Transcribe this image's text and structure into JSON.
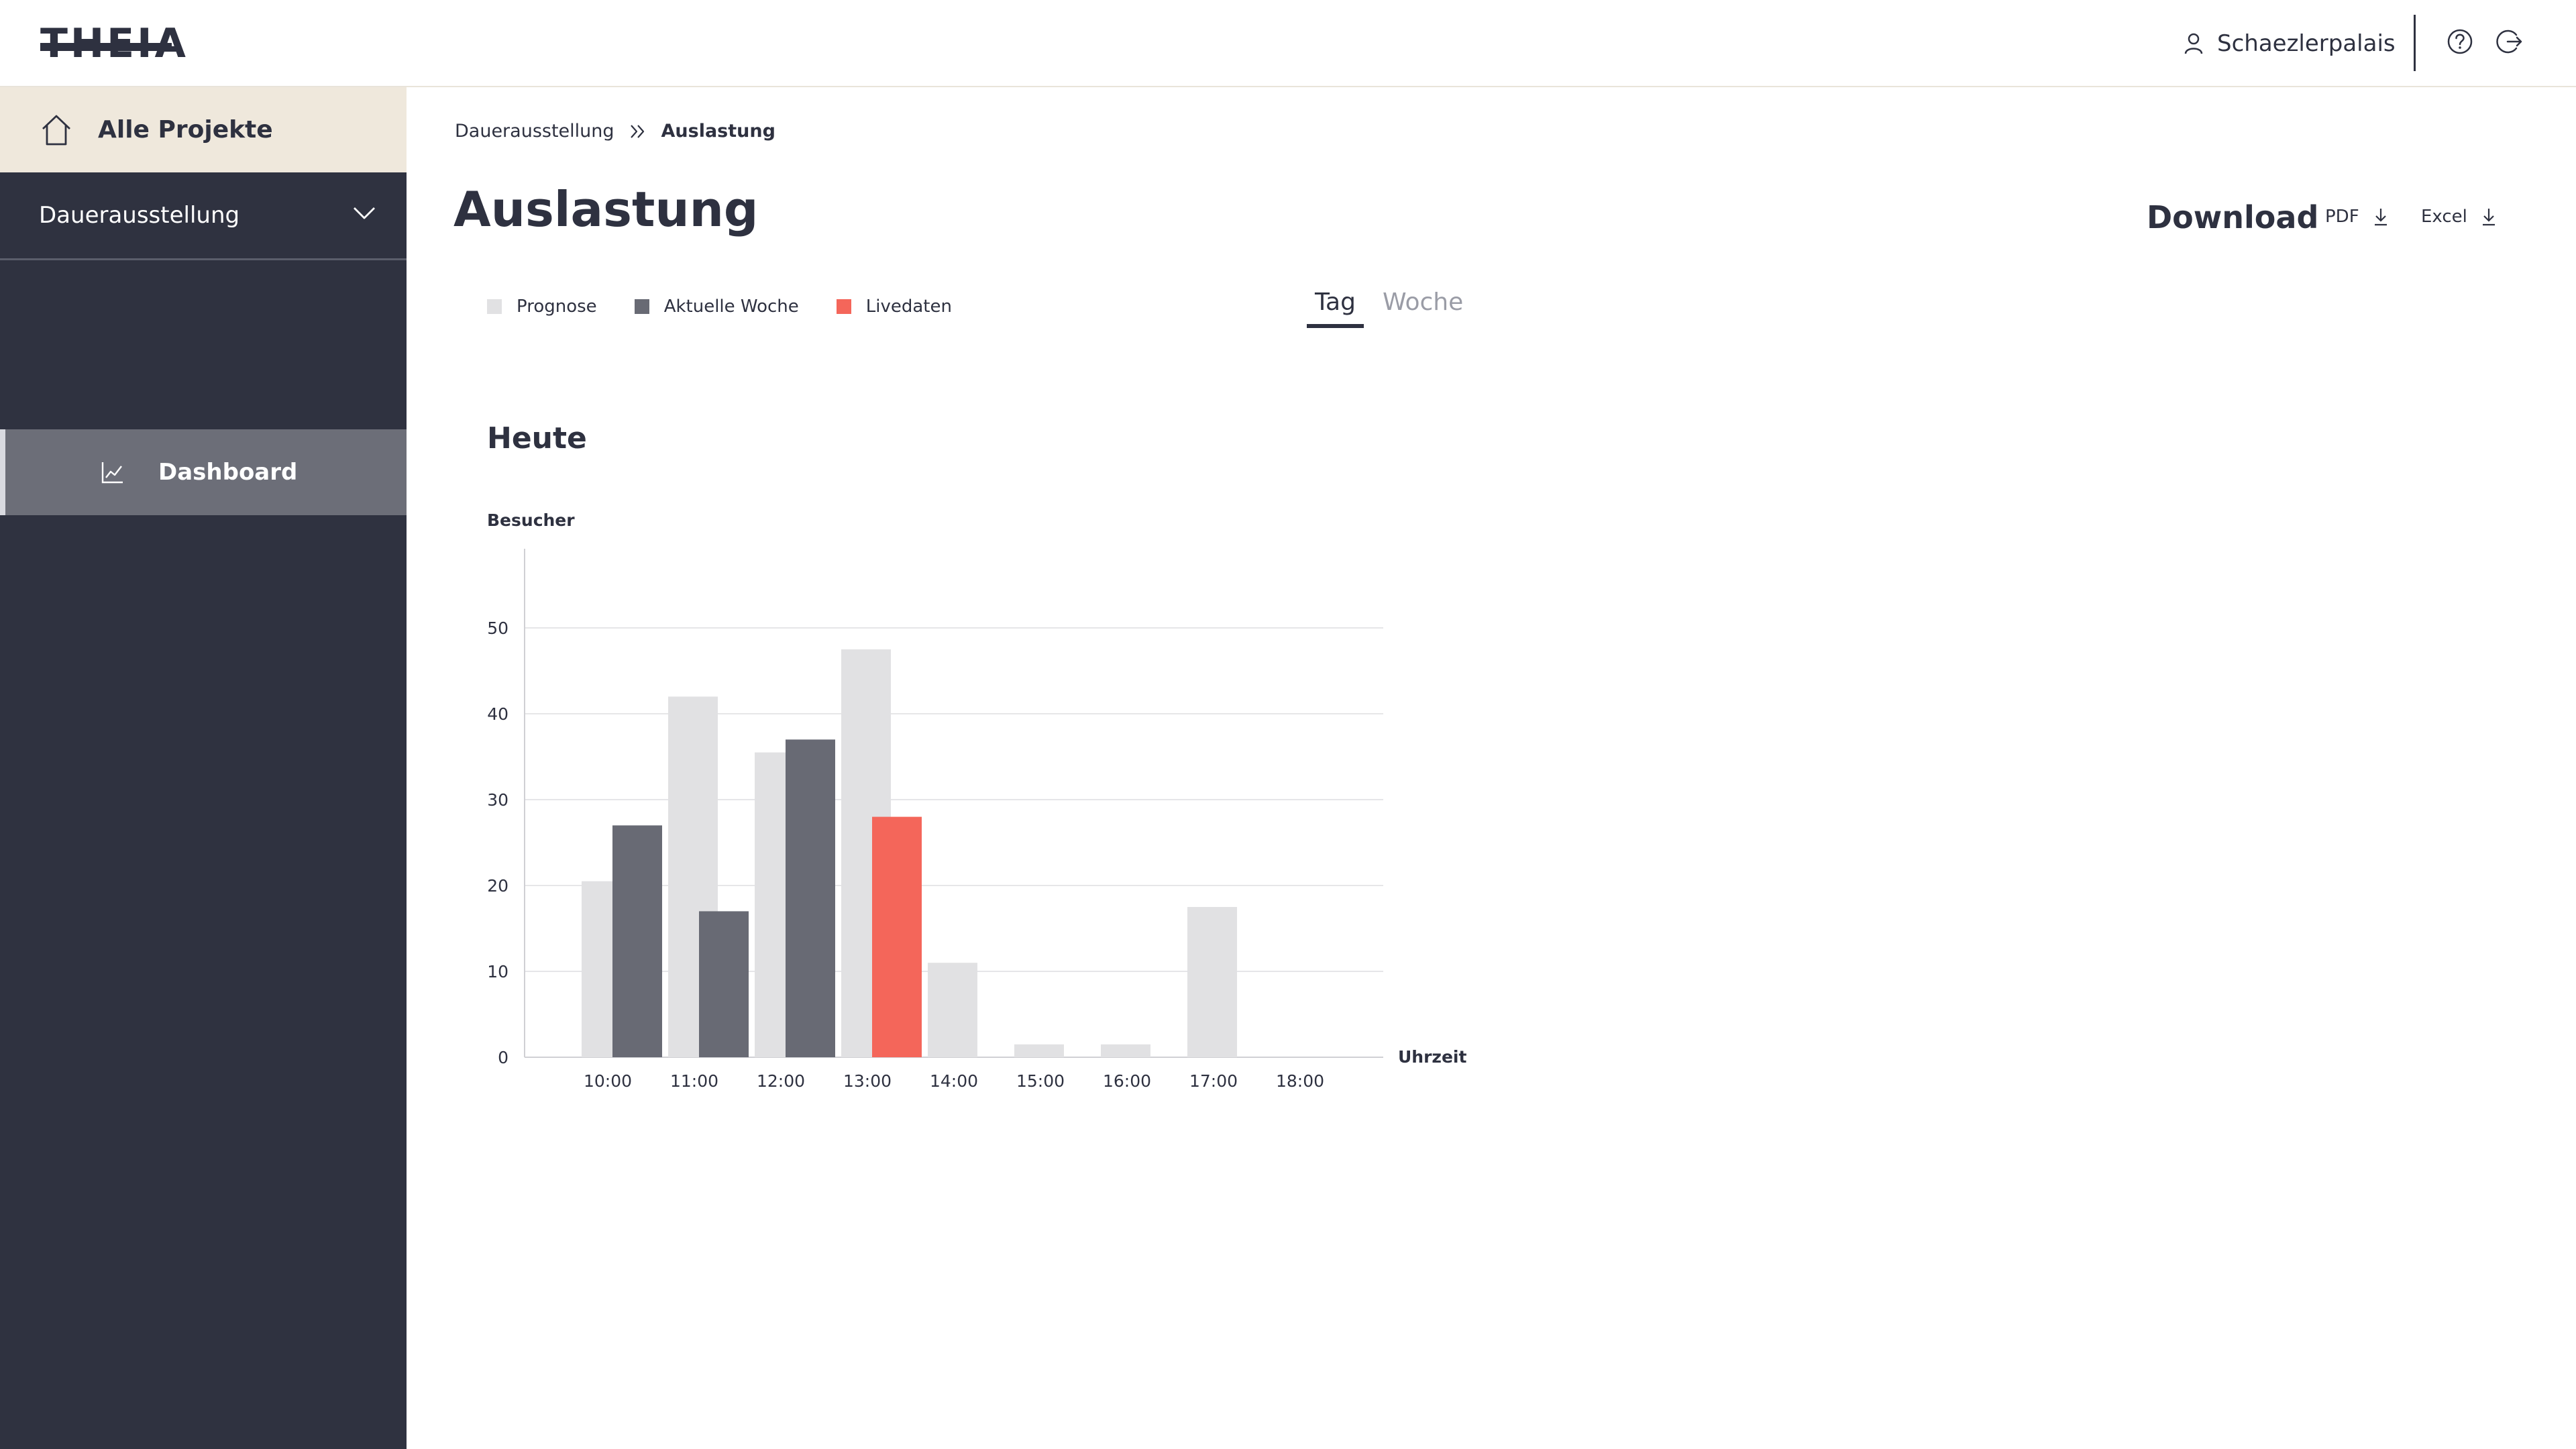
{
  "header": {
    "logo_text": "THEIA",
    "user_name": "Schaezlerpalais",
    "help_icon": "help-circle-icon",
    "logout_icon": "logout-icon"
  },
  "sidebar": {
    "all_projects": "Alle Projekte",
    "project": "Dauerausstellung",
    "items": [
      {
        "label": "Dashboard",
        "icon": "chart-line-icon",
        "active": true
      }
    ]
  },
  "breadcrumb": {
    "parent": "Dauerausstellung",
    "current": "Auslastung"
  },
  "page_title": "Auslastung",
  "download": {
    "label": "Download",
    "pdf": "PDF",
    "excel": "Excel"
  },
  "tabs": {
    "day": "Tag",
    "week": "Woche",
    "active": "Tag"
  },
  "colors": {
    "prognose": "#e1e1e3",
    "aktuelle_woche": "#686a74",
    "livedaten": "#f4665a",
    "sidebar": "#2f3240",
    "accent_beige": "#efe8dc"
  },
  "chart_title": "Heute",
  "chart_data": {
    "type": "bar",
    "ylabel": "Besucher",
    "xlabel": "Uhrzeit",
    "ylim": [
      0,
      60
    ],
    "yticks": [
      0,
      10,
      20,
      30,
      40,
      50
    ],
    "grid": true,
    "categories": [
      "10:00",
      "11:00",
      "12:00",
      "13:00",
      "14:00",
      "15:00",
      "16:00",
      "17:00",
      "18:00"
    ],
    "series": [
      {
        "name": "Prognose",
        "values": [
          20.5,
          42,
          35.5,
          47.5,
          11,
          1.5,
          1.5,
          17.5,
          null
        ]
      },
      {
        "name": "Aktuelle Woche",
        "values": [
          27,
          17,
          37,
          null,
          null,
          null,
          null,
          null,
          null
        ]
      },
      {
        "name": "Livedaten",
        "values": [
          null,
          null,
          null,
          28,
          null,
          null,
          null,
          null,
          null
        ]
      }
    ],
    "legend_position": "top-left"
  }
}
